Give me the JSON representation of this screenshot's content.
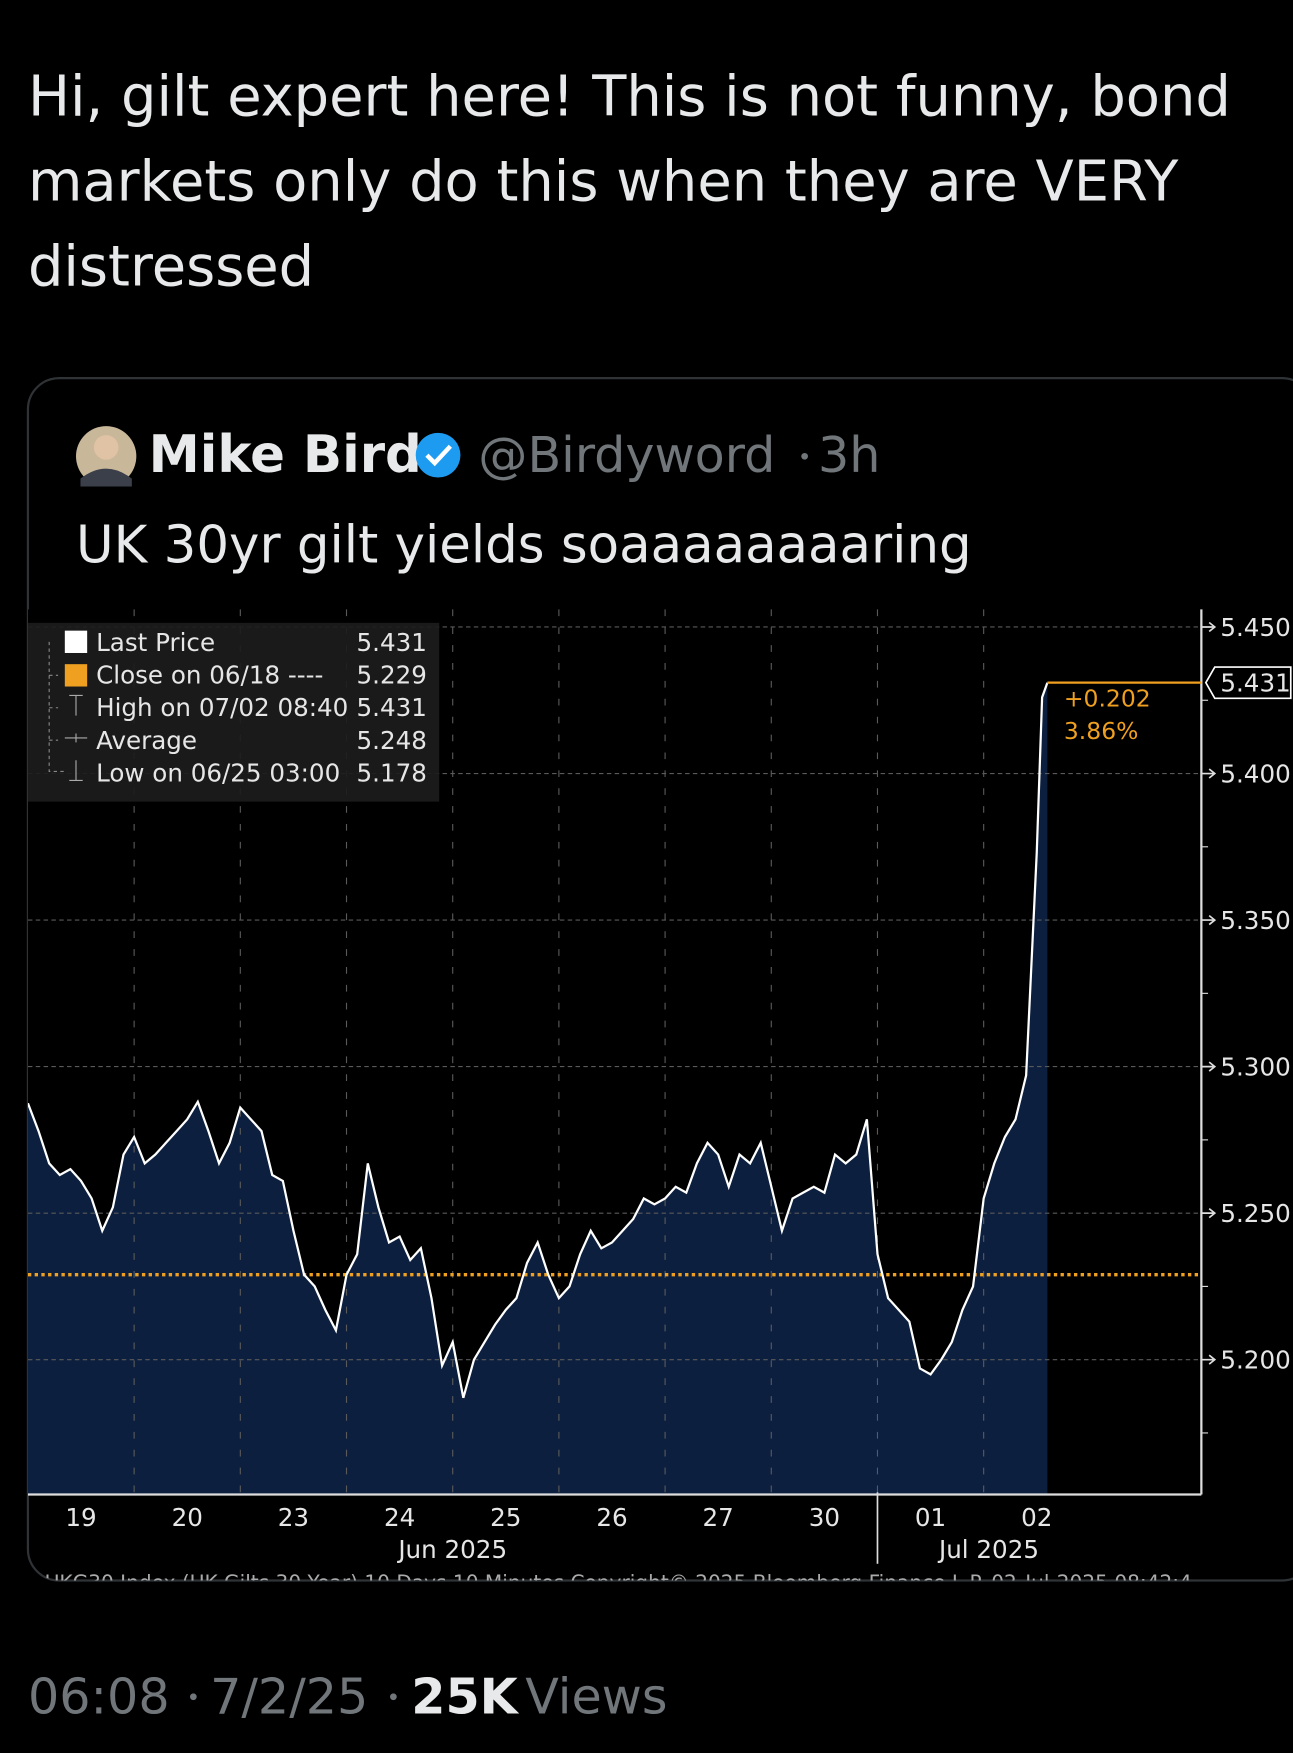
{
  "tweet": {
    "text": "Hi, gilt expert here! This is not funny, bond markets only do this when they are VERY distressed",
    "time": "06:08",
    "date": "7/2/25",
    "views_count": "25K",
    "views_label": "Views"
  },
  "quoted": {
    "author": "Mike Bird",
    "handle": "@Birdyword",
    "age": "3h",
    "text": "UK 30yr gilt yields soaaaaaaaaring"
  },
  "chart_data": {
    "type": "area",
    "x": [
      0,
      0.1,
      0.2,
      0.3,
      0.4,
      0.5,
      0.6,
      0.7,
      0.8,
      0.9,
      1.0,
      1.1,
      1.2,
      1.3,
      1.4,
      1.5,
      1.6,
      1.7,
      1.8,
      1.9,
      2.0,
      2.1,
      2.2,
      2.3,
      2.4,
      2.5,
      2.6,
      2.7,
      2.8,
      2.9,
      3.0,
      3.1,
      3.2,
      3.3,
      3.4,
      3.5,
      3.6,
      3.7,
      3.8,
      3.9,
      4.0,
      4.1,
      4.2,
      4.3,
      4.4,
      4.5,
      4.6,
      4.7,
      4.8,
      4.9,
      5.0,
      5.1,
      5.2,
      5.3,
      5.4,
      5.5,
      5.6,
      5.7,
      5.8,
      5.9,
      6.0,
      6.1,
      6.2,
      6.3,
      6.4,
      6.5,
      6.6,
      6.7,
      6.8,
      6.9,
      7.0,
      7.1,
      7.2,
      7.3,
      7.4,
      7.5,
      7.6,
      7.7,
      7.8,
      7.9,
      8.0,
      8.1,
      8.2,
      8.3,
      8.4,
      8.5,
      8.6,
      8.7,
      8.8,
      8.9,
      9.0,
      9.1,
      9.2,
      9.3,
      9.4,
      9.5,
      9.55,
      9.6
    ],
    "series": [
      {
        "name": "Last Price",
        "color": "#ffffff",
        "fill": "#0c1f3f",
        "values": [
          5.2875,
          5.278,
          5.267,
          5.263,
          5.265,
          5.261,
          5.255,
          5.244,
          5.252,
          5.27,
          5.276,
          5.267,
          5.27,
          5.274,
          5.278,
          5.282,
          5.288,
          5.278,
          5.267,
          5.274,
          5.286,
          5.282,
          5.278,
          5.263,
          5.261,
          5.244,
          5.229,
          5.225,
          5.217,
          5.21,
          5.229,
          5.236,
          5.267,
          5.252,
          5.24,
          5.242,
          5.234,
          5.238,
          5.221,
          5.198,
          5.206,
          5.187,
          5.2,
          5.206,
          5.212,
          5.217,
          5.221,
          5.233,
          5.24,
          5.229,
          5.221,
          5.225,
          5.236,
          5.244,
          5.238,
          5.24,
          5.244,
          5.248,
          5.255,
          5.253,
          5.255,
          5.259,
          5.257,
          5.267,
          5.274,
          5.27,
          5.259,
          5.27,
          5.267,
          5.274,
          5.259,
          5.244,
          5.255,
          5.257,
          5.259,
          5.257,
          5.27,
          5.267,
          5.27,
          5.282,
          5.236,
          5.221,
          5.217,
          5.213,
          5.197,
          5.195,
          5.2,
          5.206,
          5.217,
          5.225,
          5.255,
          5.267,
          5.276,
          5.282,
          5.297,
          5.373,
          5.426,
          5.431
        ]
      }
    ],
    "xlim": [
      0,
      11.05
    ],
    "xticks": [
      {
        "value": 0.5,
        "label": "19"
      },
      {
        "value": 1.5,
        "label": "20"
      },
      {
        "value": 2.5,
        "label": "23"
      },
      {
        "value": 3.5,
        "label": "24"
      },
      {
        "value": 4.5,
        "label": "25"
      },
      {
        "value": 5.5,
        "label": "26"
      },
      {
        "value": 6.5,
        "label": "27"
      },
      {
        "value": 7.5,
        "label": "30"
      },
      {
        "value": 8.5,
        "label": "01"
      },
      {
        "value": 9.5,
        "label": "02"
      }
    ],
    "months": [
      "Jun 2025",
      "Jul 2025"
    ],
    "ylim": [
      5.154,
      5.456
    ],
    "yticks": [
      {
        "value": 5.2,
        "label": "5.200"
      },
      {
        "value": 5.25,
        "label": "5.250"
      },
      {
        "value": 5.3,
        "label": "5.300"
      },
      {
        "value": 5.35,
        "label": "5.350"
      },
      {
        "value": 5.4,
        "label": "5.400"
      },
      {
        "value": 5.45,
        "label": "5.450"
      }
    ],
    "grid": true,
    "legend_items": [
      {
        "label": "Last Price",
        "value": 5.431
      },
      {
        "label": "Close on 06/18 ----",
        "value": 5.229
      },
      {
        "label": "High on 07/02 08:40",
        "value": 5.431
      },
      {
        "label": "Average",
        "value": 5.248
      },
      {
        "label": "Low on 06/25 03:00",
        "value": 5.178
      }
    ],
    "close_color": "#f0a020",
    "annotations": [
      "+0.202",
      "3.86%"
    ],
    "source": "UKG30 Index (UK Gilts 30 Year) 10 Days 10 Minutes  Copyright© 2025 Bloomberg Finance L.P.   02-Jul-2025 08:42:4"
  }
}
